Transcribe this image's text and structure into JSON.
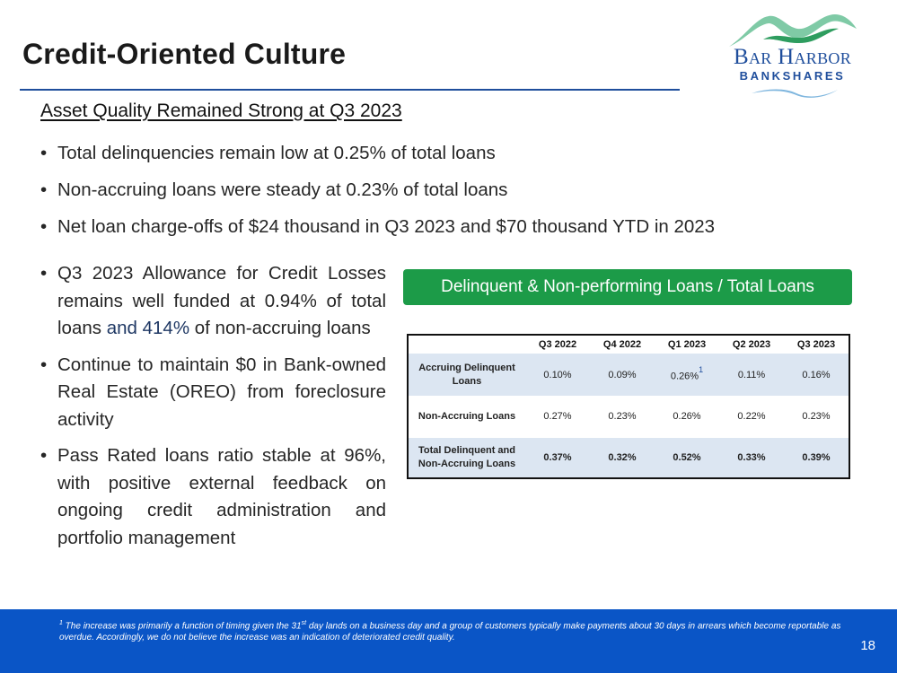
{
  "header": {
    "title": "Credit-Oriented Culture",
    "logo": {
      "line1": "Bar Harbor",
      "line2": "BANKSHARES"
    }
  },
  "subheading": "Asset Quality Remained Strong at Q3 2023",
  "top_bullets": [
    "Total delinquencies remain low at 0.25% of total loans",
    "Non-accruing loans were steady at 0.23% of total loans",
    "Net loan charge-offs of $24 thousand in Q3 2023 and $70 thousand YTD in 2023"
  ],
  "left_bullets": [
    {
      "pre": "Q3 2023 Allowance for Credit Losses remains well funded at 0.94% of total loans ",
      "highlight": "and 414%",
      "post": " of non-accruing loans"
    },
    {
      "pre": "Continue to maintain $0 in Bank-owned Real Estate (OREO) from foreclosure activity",
      "highlight": "",
      "post": ""
    },
    {
      "pre": "Pass Rated loans ratio stable at 96%, with positive external feedback on ongoing credit administration and portfolio management",
      "highlight": "",
      "post": ""
    }
  ],
  "table_section": {
    "header": "Delinquent & Non-performing Loans / Total Loans",
    "columns": [
      "Q3 2022",
      "Q4 2022",
      "Q1 2023",
      "Q2 2023",
      "Q3 2023"
    ],
    "rows": [
      {
        "label": "Accruing Delinquent Loans",
        "values": [
          "0.10%",
          "0.09%",
          "0.26%",
          "0.11%",
          "0.16%"
        ],
        "footnote_marker": "1"
      },
      {
        "label": "Non-Accruing Loans",
        "values": [
          "0.27%",
          "0.23%",
          "0.26%",
          "0.22%",
          "0.23%"
        ]
      },
      {
        "label": "Total Delinquent and Non-Accruing Loans",
        "values": [
          "0.37%",
          "0.32%",
          "0.52%",
          "0.33%",
          "0.39%"
        ]
      }
    ]
  },
  "footer": {
    "footnote_marker": "1",
    "footnote_pre": " The increase was primarily a function of timing given the 31",
    "footnote_sup": "st",
    "footnote_post": " day lands on a business day and a group of customers typically make payments about 30 days in arrears which become reportable as overdue.   Accordingly, we do not believe the increase was an indication of deteriorated credit quality.",
    "page_number": "18"
  },
  "colors": {
    "brand_blue": "#1f4e9c",
    "green_header": "#1c9b48",
    "footer_blue": "#0a55c6",
    "table_shade": "#dce6f2"
  }
}
